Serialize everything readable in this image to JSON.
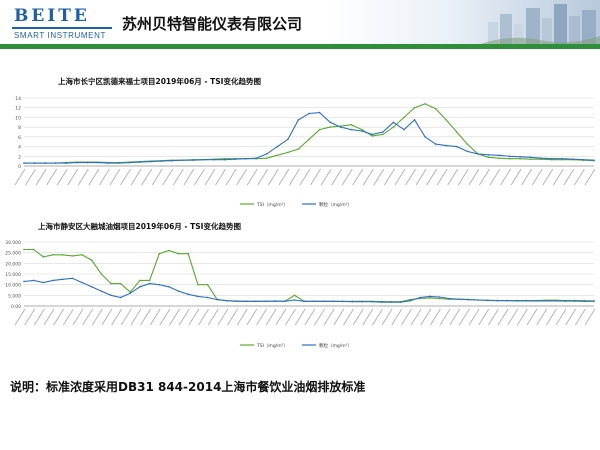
{
  "header": {
    "logo_text": "BEITE",
    "logo_sub": "SMART INSTRUMENT",
    "company_name": "苏州贝特智能仪表有限公司",
    "brand_color": "#1f5fa6",
    "rule_color": "#2f8e3a"
  },
  "note": "说明：标准浓度采用DB31 844-2014上海市餐饮业油烟排放标准",
  "chart_data": [
    {
      "type": "line",
      "title": "上海市长宁区凯德来福士项目2019年06月 - TSI变化趋势图",
      "xlabel": "",
      "ylabel": "",
      "ylim": [
        0,
        14
      ],
      "yticks": [
        0,
        2,
        4,
        6,
        8,
        10,
        12,
        14
      ],
      "grid": true,
      "legend": "bottom",
      "x_tick_labels_legible": false,
      "series": [
        {
          "name": "TSI（mg/m³）",
          "color": "#5aa832",
          "values": [
            0.6,
            0.6,
            0.6,
            0.6,
            0.7,
            0.8,
            0.8,
            0.8,
            0.7,
            0.7,
            0.8,
            0.9,
            1.0,
            1.1,
            1.2,
            1.2,
            1.3,
            1.3,
            1.4,
            1.5,
            1.5,
            1.5,
            1.5,
            1.6,
            2.2,
            2.8,
            3.5,
            5.5,
            7.5,
            8.0,
            8.2,
            8.5,
            7.5,
            6.2,
            6.5,
            8.0,
            10.0,
            12.0,
            12.8,
            11.8,
            9.5,
            7.0,
            4.5,
            2.5,
            1.8,
            1.6,
            1.5,
            1.5,
            1.4,
            1.4,
            1.3,
            1.3,
            1.3,
            1.2,
            1.1
          ]
        },
        {
          "name": "颗粒（mg/m³）",
          "color": "#2f6fc0",
          "values": [
            0.6,
            0.6,
            0.6,
            0.6,
            0.6,
            0.7,
            0.7,
            0.7,
            0.6,
            0.6,
            0.7,
            0.8,
            0.9,
            1.0,
            1.1,
            1.2,
            1.2,
            1.3,
            1.3,
            1.3,
            1.4,
            1.5,
            1.6,
            2.5,
            4.0,
            5.5,
            9.5,
            10.8,
            11.0,
            9.0,
            8.0,
            7.5,
            7.2,
            6.5,
            7.0,
            9.0,
            7.5,
            9.5,
            6.0,
            4.5,
            4.2,
            4.0,
            3.0,
            2.5,
            2.3,
            2.2,
            2.0,
            1.9,
            1.8,
            1.6,
            1.5,
            1.5,
            1.4,
            1.3,
            1.2
          ]
        }
      ]
    },
    {
      "type": "line",
      "title": "上海市静安区大融城油烟项目2019年06月 - TSI变化趋势图",
      "xlabel": "",
      "ylabel": "",
      "ylim": [
        0,
        30000
      ],
      "yticks": [
        0,
        5000,
        10000,
        15000,
        20000,
        25000,
        30000
      ],
      "ytick_labels": [
        "0.00",
        "5.000",
        "10.000",
        "15.000",
        "20.000",
        "25.000",
        "30.000"
      ],
      "grid": true,
      "legend": "bottom",
      "x_tick_labels_legible": false,
      "series": [
        {
          "name": "TSI（mg/m³）",
          "color": "#5aa832",
          "values": [
            26500,
            26500,
            23000,
            24000,
            24000,
            23500,
            24000,
            21500,
            15000,
            10500,
            10500,
            6500,
            12000,
            12000,
            24500,
            26000,
            24500,
            24500,
            10000,
            10000,
            3000,
            2500,
            2200,
            2200,
            2200,
            2200,
            2300,
            2200,
            5000,
            2200,
            2200,
            2200,
            2200,
            2200,
            2200,
            2200,
            2200,
            2100,
            2000,
            2000,
            3000,
            3500,
            3800,
            3500,
            3200,
            3200,
            3000,
            2800,
            2700,
            2600,
            2600,
            2600,
            2600,
            2600,
            2700,
            2700,
            2600,
            2600,
            2500,
            2400
          ]
        },
        {
          "name": "颗粒（mg/m³）",
          "color": "#2f6fc0",
          "values": [
            11500,
            12000,
            11000,
            12000,
            12500,
            13000,
            11000,
            9000,
            7000,
            5000,
            4000,
            6000,
            9000,
            10500,
            10000,
            9000,
            7000,
            5500,
            4500,
            4000,
            3000,
            2500,
            2300,
            2200,
            2200,
            2200,
            2300,
            2200,
            2800,
            2200,
            2200,
            2200,
            2200,
            2100,
            2000,
            2000,
            2000,
            1800,
            1800,
            1800,
            2500,
            4000,
            4500,
            4200,
            3500,
            3200,
            3000,
            2800,
            2600,
            2500,
            2500,
            2400,
            2400,
            2400,
            2400,
            2400,
            2300,
            2300,
            2200,
            2200
          ]
        }
      ]
    }
  ]
}
